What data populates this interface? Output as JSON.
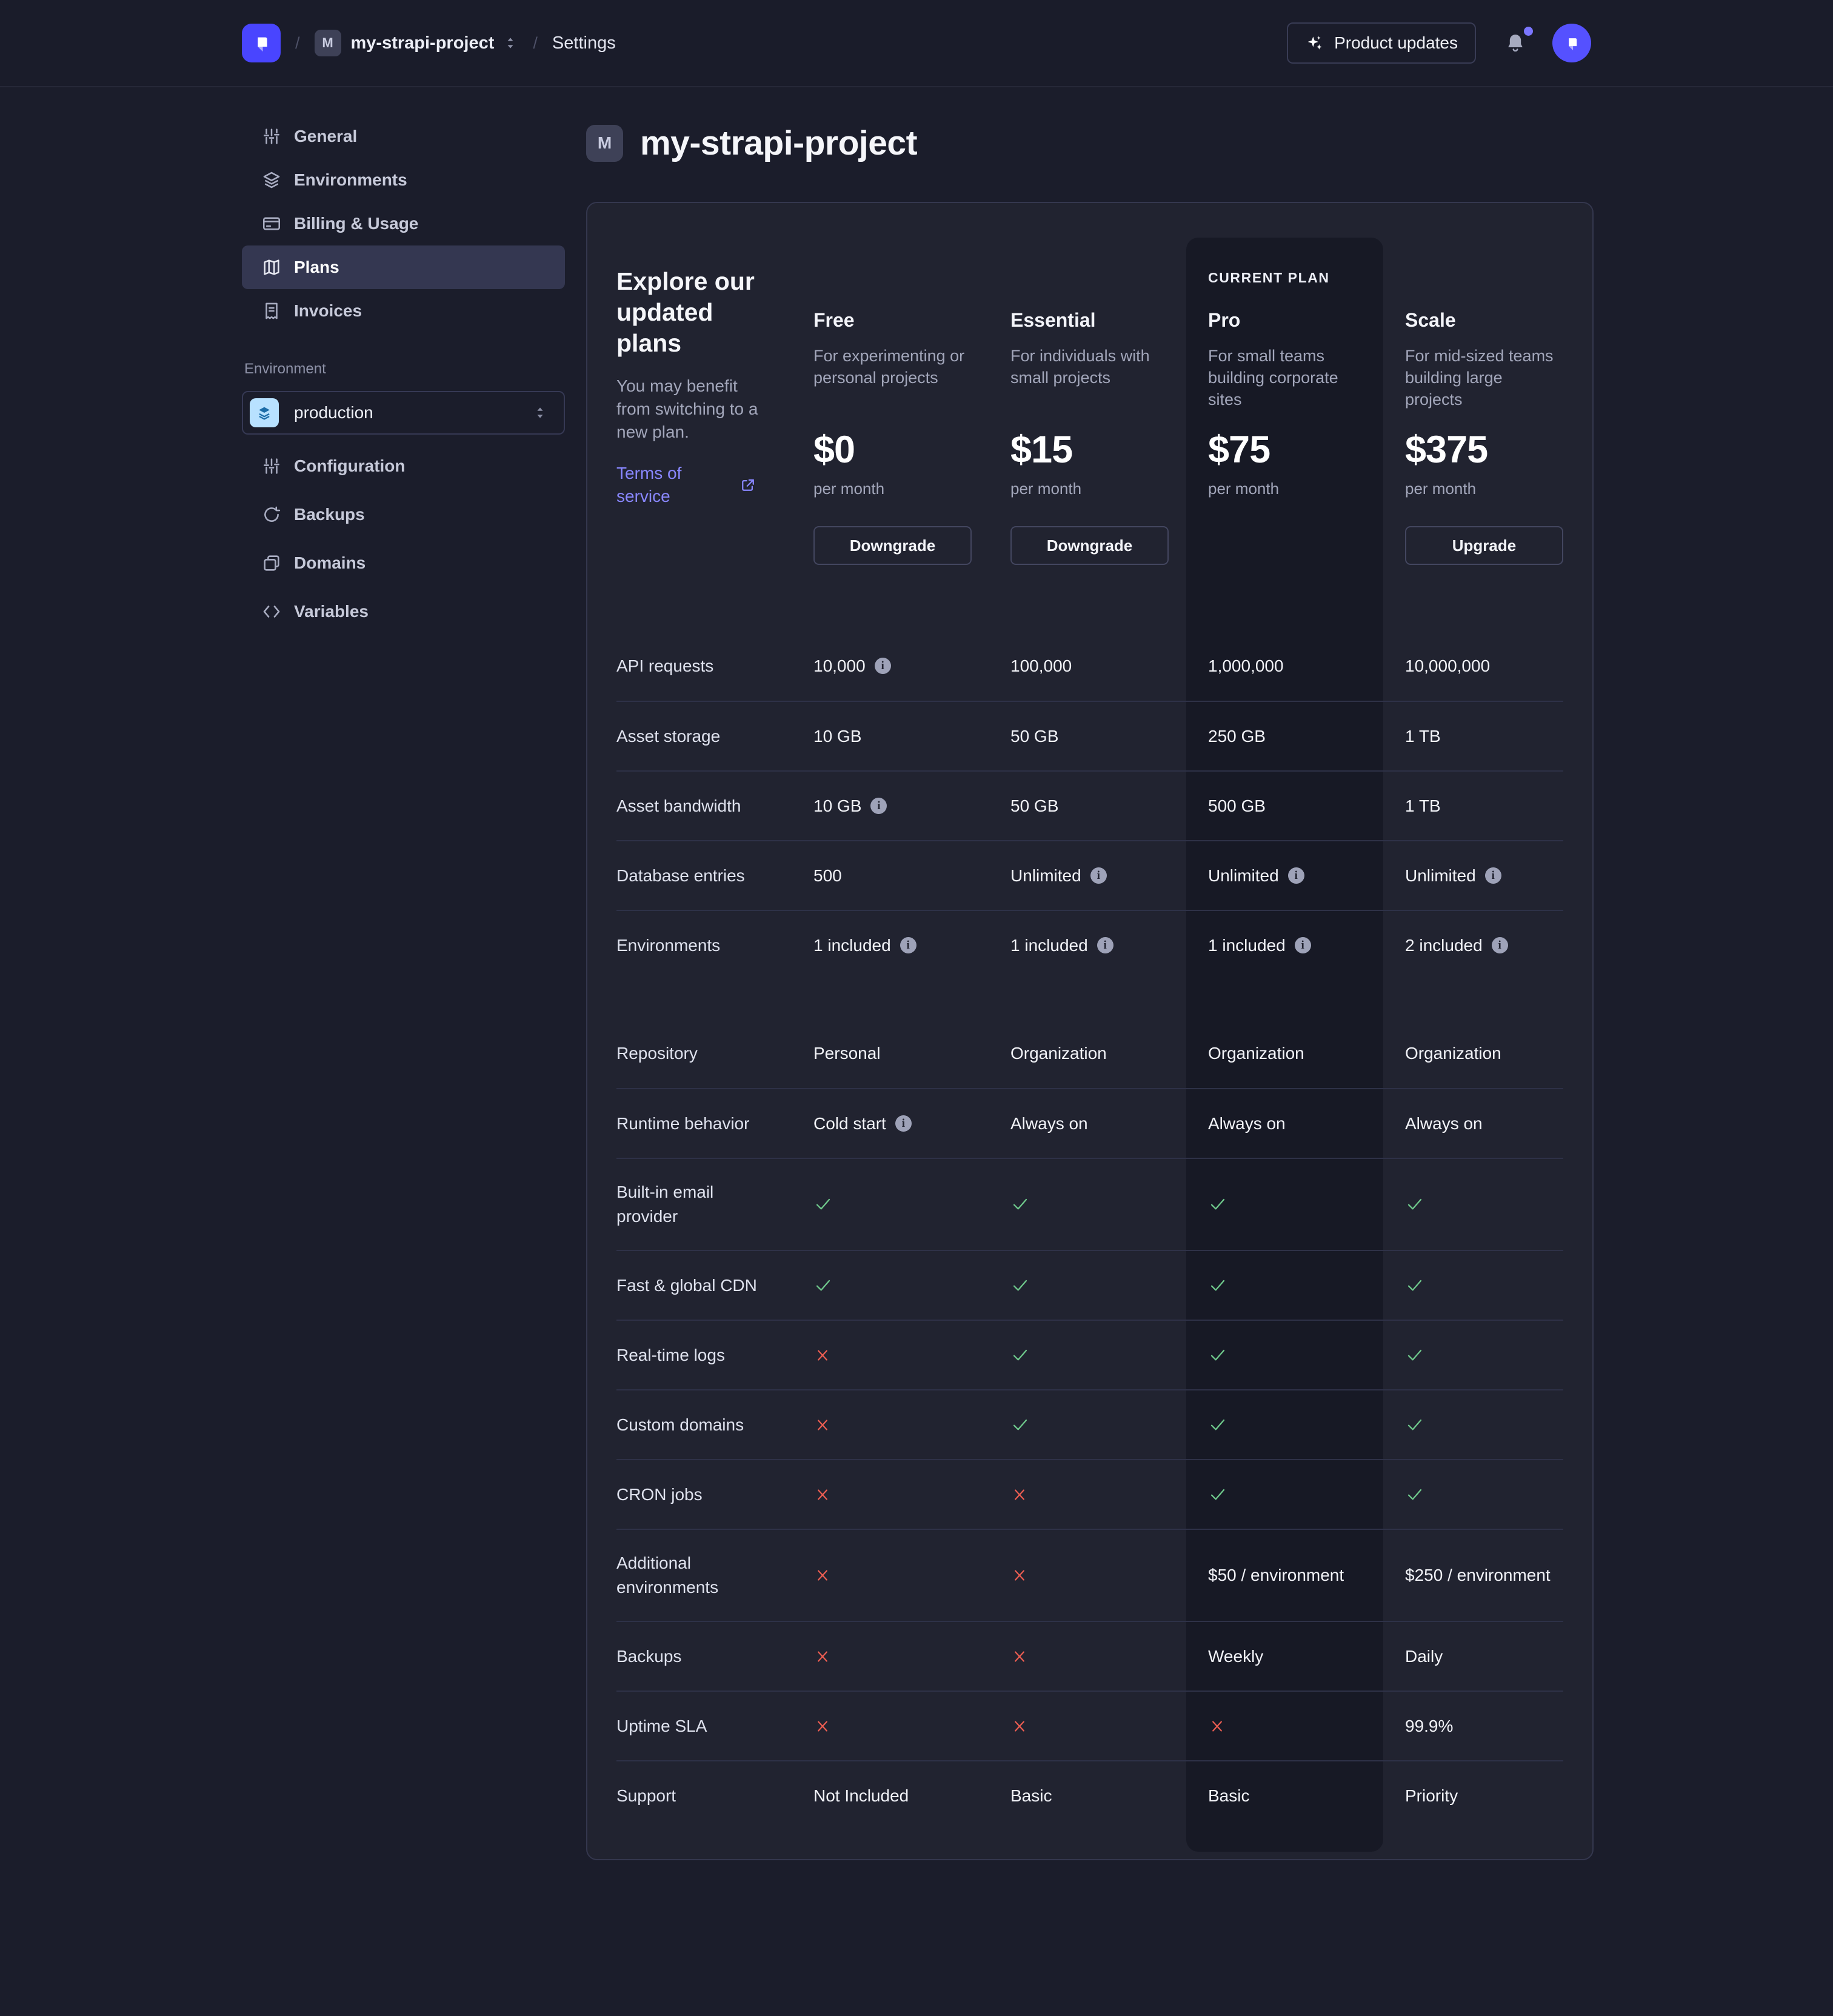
{
  "header": {
    "breadcrumb": {
      "project_badge": "M",
      "project": "my-strapi-project",
      "section": "Settings",
      "separator": "/"
    },
    "product_updates_label": "Product updates"
  },
  "sidebar": {
    "items": [
      {
        "label": "General",
        "icon": "sliders-icon",
        "active": false
      },
      {
        "label": "Environments",
        "icon": "layers-icon",
        "active": false
      },
      {
        "label": "Billing & Usage",
        "icon": "credit-card-icon",
        "active": false
      },
      {
        "label": "Plans",
        "icon": "map-icon",
        "active": true
      },
      {
        "label": "Invoices",
        "icon": "invoice-icon",
        "active": false
      }
    ],
    "environment": {
      "label": "Environment",
      "value": "production",
      "icon": "layers-icon"
    },
    "env_items": [
      {
        "label": "Configuration",
        "icon": "sliders-icon"
      },
      {
        "label": "Backups",
        "icon": "refresh-icon"
      },
      {
        "label": "Domains",
        "icon": "copies-icon"
      },
      {
        "label": "Variables",
        "icon": "code-icon"
      }
    ]
  },
  "page": {
    "badge": "M",
    "title": "my-strapi-project"
  },
  "plans_panel": {
    "intro": {
      "title": "Explore our updated plans",
      "body": "You may benefit from switching to a new plan.",
      "link": "Terms of service"
    },
    "current_plan_label": "CURRENT PLAN",
    "plans": [
      {
        "name": "Free",
        "description": "For experimenting or personal projects",
        "price": "$0",
        "period": "per month",
        "action": "Downgrade",
        "current": false
      },
      {
        "name": "Essential",
        "description": "For individuals with small projects",
        "price": "$15",
        "period": "per month",
        "action": "Downgrade",
        "current": false
      },
      {
        "name": "Pro",
        "description": "For small teams building corporate sites",
        "price": "$75",
        "period": "per month",
        "action": null,
        "current": true
      },
      {
        "name": "Scale",
        "description": "For mid-sized teams building large projects",
        "price": "$375",
        "period": "per month",
        "action": "Upgrade",
        "current": false
      }
    ],
    "features": [
      {
        "label": "API requests",
        "values": [
          {
            "text": "10,000",
            "info": true
          },
          {
            "text": "100,000"
          },
          {
            "text": "1,000,000"
          },
          {
            "text": "10,000,000"
          }
        ]
      },
      {
        "label": "Asset storage",
        "values": [
          {
            "text": "10 GB"
          },
          {
            "text": "50 GB"
          },
          {
            "text": "250 GB"
          },
          {
            "text": "1 TB"
          }
        ]
      },
      {
        "label": "Asset bandwidth",
        "values": [
          {
            "text": "10 GB",
            "info": true
          },
          {
            "text": "50 GB"
          },
          {
            "text": "500 GB"
          },
          {
            "text": "1 TB"
          }
        ]
      },
      {
        "label": "Database entries",
        "values": [
          {
            "text": "500"
          },
          {
            "text": "Unlimited",
            "info": true
          },
          {
            "text": "Unlimited",
            "info": true
          },
          {
            "text": "Unlimited",
            "info": true
          }
        ]
      },
      {
        "label": "Environments",
        "gap_after": true,
        "values": [
          {
            "text": "1 included",
            "info": true
          },
          {
            "text": "1 included",
            "info": true
          },
          {
            "text": "1 included",
            "info": true
          },
          {
            "text": "2 included",
            "info": true
          }
        ]
      },
      {
        "label": "Repository",
        "no_top_divider": true,
        "values": [
          {
            "text": "Personal"
          },
          {
            "text": "Organization"
          },
          {
            "text": "Organization"
          },
          {
            "text": "Organization"
          }
        ]
      },
      {
        "label": "Runtime behavior",
        "values": [
          {
            "text": "Cold start",
            "info": true
          },
          {
            "text": "Always on"
          },
          {
            "text": "Always on"
          },
          {
            "text": "Always on"
          }
        ]
      },
      {
        "label": "Built-in email provider",
        "tall": true,
        "values": [
          {
            "check": true
          },
          {
            "check": true
          },
          {
            "check": true
          },
          {
            "check": true
          }
        ]
      },
      {
        "label": "Fast & global CDN",
        "values": [
          {
            "check": true
          },
          {
            "check": true
          },
          {
            "check": true
          },
          {
            "check": true
          }
        ]
      },
      {
        "label": "Real-time logs",
        "values": [
          {
            "cross": true
          },
          {
            "check": true
          },
          {
            "check": true
          },
          {
            "check": true
          }
        ]
      },
      {
        "label": "Custom domains",
        "values": [
          {
            "cross": true
          },
          {
            "check": true
          },
          {
            "check": true
          },
          {
            "check": true
          }
        ]
      },
      {
        "label": "CRON jobs",
        "values": [
          {
            "cross": true
          },
          {
            "cross": true
          },
          {
            "check": true
          },
          {
            "check": true
          }
        ]
      },
      {
        "label": "Additional environments",
        "tall": true,
        "values": [
          {
            "cross": true
          },
          {
            "cross": true
          },
          {
            "text": "$50 / environment"
          },
          {
            "text": "$250 / environment"
          }
        ]
      },
      {
        "label": "Backups",
        "values": [
          {
            "cross": true
          },
          {
            "cross": true
          },
          {
            "text": "Weekly"
          },
          {
            "text": "Daily"
          }
        ]
      },
      {
        "label": "Uptime SLA",
        "values": [
          {
            "cross": true
          },
          {
            "cross": true
          },
          {
            "cross": true
          },
          {
            "text": "99.9%"
          }
        ]
      },
      {
        "label": "Support",
        "values": [
          {
            "text": "Not Included"
          },
          {
            "text": "Basic"
          },
          {
            "text": "Basic"
          },
          {
            "text": "Priority"
          }
        ]
      }
    ]
  },
  "colors": {
    "brand": "#4945ff",
    "link": "#8987ff",
    "success": "#6fc98c",
    "danger": "#ee5e52",
    "env_icon_bg": "#b8e1ff",
    "notification_dot": "#7b76ff",
    "card_bg": "#212330",
    "current_plan_bg": "#171925"
  }
}
